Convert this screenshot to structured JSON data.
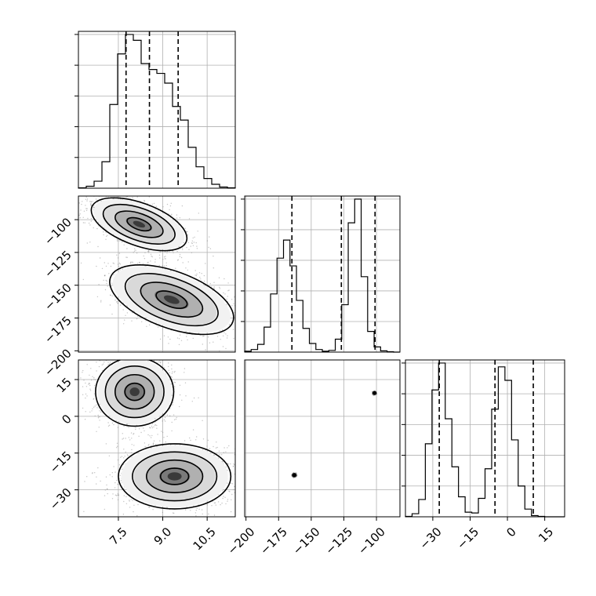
{
  "chart_data": {
    "type": "corner",
    "parameters": [
      "p0",
      "p1",
      "p2"
    ],
    "ranges": {
      "p0": [
        6.15,
        11.45
      ],
      "p1": [
        -201,
        -82
      ],
      "p2": [
        -41,
        23
      ]
    },
    "ticks": {
      "p0": {
        "values": [
          7.5,
          9.0,
          10.5
        ],
        "labels": [
          "7.5",
          "9.0",
          "10.5"
        ]
      },
      "p1": {
        "values": [
          -200,
          -175,
          -150,
          -125,
          -100
        ],
        "labels": [
          "−200",
          "−175",
          "−150",
          "−125",
          "−100"
        ]
      },
      "p2": {
        "values": [
          -30,
          -15,
          0,
          15
        ],
        "labels": [
          "−30",
          "−15",
          "0",
          "15"
        ]
      }
    },
    "grid": true,
    "histograms": [
      {
        "param": "p0",
        "bin_edges": [
          6.15,
          6.415,
          6.68,
          6.945,
          7.21,
          7.475,
          7.74,
          8.005,
          8.27,
          8.535,
          8.8,
          9.065,
          9.33,
          9.595,
          9.86,
          10.125,
          10.39,
          10.655,
          10.92,
          11.185,
          11.45
        ],
        "counts": [
          1,
          5,
          18,
          68,
          215,
          345,
          395,
          380,
          320,
          305,
          295,
          270,
          210,
          175,
          105,
          55,
          25,
          10,
          3,
          1
        ],
        "quantiles": [
          7.76,
          8.55,
          9.52
        ]
      },
      {
        "param": "p1",
        "bin_edges": [
          -201,
          -196.04,
          -191.08,
          -186.12,
          -181.16,
          -176.2,
          -171.24,
          -166.28,
          -161.32,
          -156.36,
          -151.4,
          -146.44,
          -141.48,
          -136.52,
          -131.56,
          -126.6,
          -121.64,
          -116.68,
          -111.72,
          -106.76,
          -101.8,
          -96.84,
          -91.88,
          -86.92,
          -82
        ],
        "counts": [
          2,
          6,
          18,
          58,
          135,
          218,
          260,
          200,
          120,
          55,
          20,
          6,
          2,
          4,
          30,
          110,
          300,
          355,
          175,
          48,
          12,
          3,
          1,
          0
        ],
        "quantiles": [
          -164.8,
          -126.9,
          -101.1
        ]
      },
      {
        "param": "p2",
        "bin_edges": [
          -41,
          -38.33,
          -35.67,
          -33,
          -30.33,
          -27.67,
          -25,
          -22.33,
          -19.67,
          -17,
          -14.33,
          -11.67,
          -9,
          -6.33,
          -3.67,
          -1,
          1.67,
          4.33,
          7,
          9.67,
          12.33,
          15,
          17.67,
          20.33,
          23
        ],
        "counts": [
          1,
          8,
          45,
          190,
          330,
          400,
          255,
          130,
          52,
          12,
          10,
          48,
          125,
          280,
          390,
          355,
          200,
          80,
          20,
          3,
          1,
          0,
          0,
          0
        ],
        "quantiles": [
          -27.4,
          -5.0,
          10.4
        ]
      }
    ],
    "joint": [
      {
        "x": "p0",
        "y": "p1",
        "modes": [
          {
            "center": [
              8.2,
              -103.5
            ],
            "sd_major": 0.85,
            "sd_minor": 0.36,
            "angle_deg": -20,
            "weight": 0.5
          },
          {
            "center": [
              9.3,
              -161.0
            ],
            "sd_major": 1.1,
            "sd_minor": 0.48,
            "angle_deg": -20,
            "weight": 0.5
          }
        ]
      },
      {
        "x": "p0",
        "y": "p2",
        "modes": [
          {
            "center": [
              8.05,
              10.0
            ],
            "sd_major": 0.66,
            "sd_minor": 0.58,
            "angle_deg": 0,
            "weight": 0.5
          },
          {
            "center": [
              9.4,
              -24.5
            ],
            "sd_major": 0.95,
            "sd_minor": 0.55,
            "angle_deg": 0,
            "weight": 0.5
          }
        ]
      },
      {
        "x": "p1",
        "y": "p2",
        "modes": [
          {
            "center": [
              -163.0,
              -24.0
            ],
            "sd_major": 0.62,
            "sd_minor": 0.55,
            "angle_deg": 0,
            "weight": 0.5
          },
          {
            "center": [
              -101.5,
              9.5
            ],
            "sd_major": 0.55,
            "sd_minor": 0.5,
            "angle_deg": 0,
            "weight": 0.5
          }
        ]
      }
    ]
  }
}
